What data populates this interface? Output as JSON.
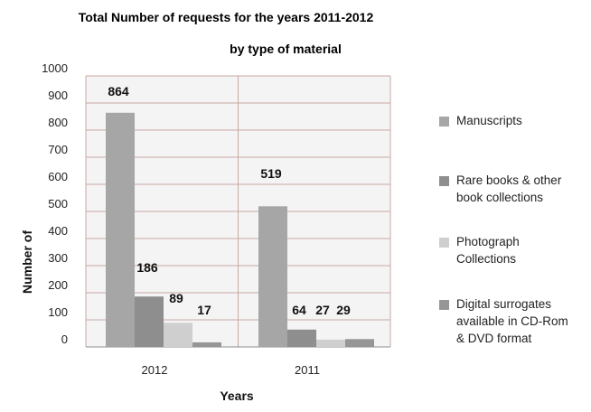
{
  "chart_data": {
    "type": "bar",
    "title": "Total Number of requests for the years 2011-2012",
    "subtitle": "by type of material",
    "xlabel": "Years",
    "ylabel": "Number of",
    "categories": [
      "2012",
      "2011"
    ],
    "ytick_labels": [
      "1000",
      "900",
      "800",
      "700",
      "600",
      "500",
      "400",
      "300",
      "200",
      "100",
      "0"
    ],
    "ylim": [
      0,
      1000
    ],
    "grid": true,
    "legend_position": "right",
    "series": [
      {
        "name": "Manuscripts",
        "values": [
          864,
          519
        ],
        "labels": [
          "864",
          "519"
        ],
        "color": "#a6a6a6"
      },
      {
        "name": "Rare books & other book collections",
        "values": [
          186,
          64
        ],
        "labels": [
          "186",
          "64"
        ],
        "color": "#8e8e8e"
      },
      {
        "name": "Photograph Collections",
        "values": [
          89,
          27
        ],
        "labels": [
          "89",
          "27"
        ],
        "color": "#cfcfcf"
      },
      {
        "name": "Digital surrogates available in CD-Rom & DVD format",
        "values": [
          17,
          29
        ],
        "labels": [
          "17",
          "29"
        ],
        "color": "#969696"
      }
    ],
    "legend_lines": [
      [
        "Manuscripts"
      ],
      [
        "Rare books & other",
        "book collections"
      ],
      [
        "Photograph",
        "Collections"
      ],
      [
        "Digital surrogates",
        "available in CD-Rom",
        "& DVD format"
      ]
    ]
  }
}
